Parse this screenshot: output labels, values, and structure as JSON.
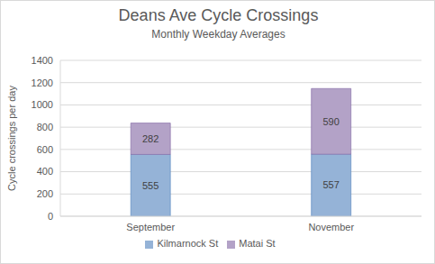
{
  "chart_data": {
    "type": "bar",
    "title": "Deans Ave Cycle Crossings",
    "subtitle": "Monthly Weekday Averages",
    "y_label": "Cycle crossings per day",
    "categories": [
      "September",
      "November"
    ],
    "series": [
      {
        "name": "Kilmarnock St",
        "color": "#95b3d7",
        "values": [
          555,
          557
        ]
      },
      {
        "name": "Matai St",
        "color": "#b3a2c7",
        "values": [
          282,
          590
        ]
      }
    ],
    "stacked": true,
    "data_labels": true,
    "ylim": [
      0,
      1400
    ],
    "yticks": [
      0,
      200,
      400,
      600,
      800,
      1000,
      1200,
      1400
    ],
    "grid": true,
    "legend": "bottom"
  }
}
